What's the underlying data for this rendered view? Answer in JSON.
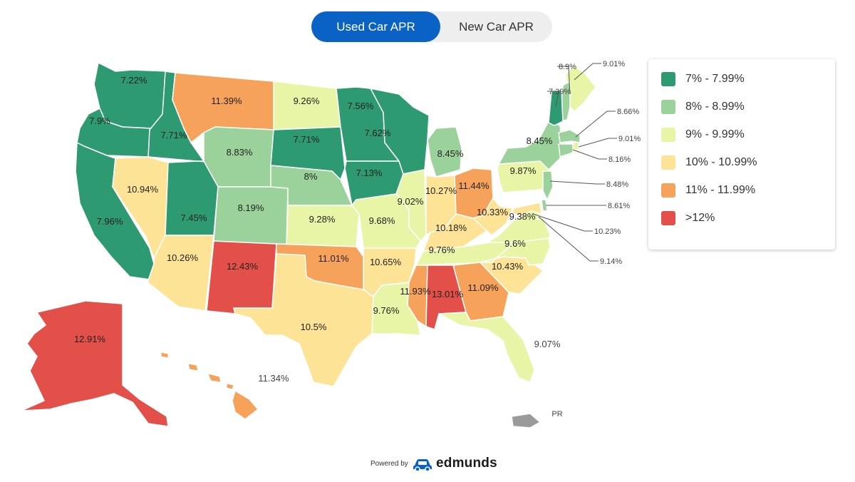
{
  "toggle": {
    "active": "Used Car APR",
    "inactive": "New Car APR"
  },
  "legend": [
    {
      "label": "7% - 7.99%",
      "color": "#2e9a72"
    },
    {
      "label": "8% - 8.99%",
      "color": "#9bd29b"
    },
    {
      "label": "9% - 9.99%",
      "color": "#e8f5a6"
    },
    {
      "label": "10% - 10.99%",
      "color": "#fde396"
    },
    {
      "label": "11% - 11.99%",
      "color": "#f7a25a"
    },
    {
      "label": ">12%",
      "color": "#e35049"
    }
  ],
  "states": [
    {
      "name": "Washington",
      "value": "7.22%"
    },
    {
      "name": "Oregon",
      "value": "7.9%"
    },
    {
      "name": "California",
      "value": "7.96%"
    },
    {
      "name": "Idaho",
      "value": "7.71%"
    },
    {
      "name": "Nevada",
      "value": "10.94%"
    },
    {
      "name": "Utah",
      "value": "7.45%"
    },
    {
      "name": "Arizona",
      "value": "10.26%"
    },
    {
      "name": "Montana",
      "value": "11.39%"
    },
    {
      "name": "Wyoming",
      "value": "8.83%"
    },
    {
      "name": "Colorado",
      "value": "8.19%"
    },
    {
      "name": "New Mexico",
      "value": "12.43%"
    },
    {
      "name": "North Dakota",
      "value": "9.26%"
    },
    {
      "name": "South Dakota",
      "value": "7.71%"
    },
    {
      "name": "Nebraska",
      "value": "8%"
    },
    {
      "name": "Kansas",
      "value": "9.28%"
    },
    {
      "name": "Oklahoma",
      "value": "11.01%"
    },
    {
      "name": "Texas",
      "value": "10.5%"
    },
    {
      "name": "Minnesota",
      "value": "7.56%"
    },
    {
      "name": "Iowa",
      "value": "7.13%"
    },
    {
      "name": "Missouri",
      "value": "9.68%"
    },
    {
      "name": "Arkansas",
      "value": "10.65%"
    },
    {
      "name": "Louisiana",
      "value": "9.76%"
    },
    {
      "name": "Wisconsin",
      "value": "7.62%"
    },
    {
      "name": "Illinois",
      "value": "9.02%"
    },
    {
      "name": "Michigan",
      "value": "8.45%"
    },
    {
      "name": "Indiana",
      "value": "10.27%"
    },
    {
      "name": "Ohio",
      "value": "11.44%"
    },
    {
      "name": "Kentucky",
      "value": "10.18%"
    },
    {
      "name": "Tennessee",
      "value": "9.76%"
    },
    {
      "name": "Mississippi",
      "value": "11.93%"
    },
    {
      "name": "Alabama",
      "value": "13.01%"
    },
    {
      "name": "Georgia",
      "value": "11.09%"
    },
    {
      "name": "Florida",
      "value": "9.07%"
    },
    {
      "name": "South Carolina",
      "value": "10.43%"
    },
    {
      "name": "North Carolina",
      "value": "9.6%"
    },
    {
      "name": "Virginia",
      "value": "9.38%"
    },
    {
      "name": "West Virginia",
      "value": "10.33%"
    },
    {
      "name": "Pennsylvania",
      "value": "9.87%"
    },
    {
      "name": "New York",
      "value": "8.45%"
    },
    {
      "name": "Maine",
      "value": "9.01%"
    },
    {
      "name": "New Hampshire",
      "value": "8.9%"
    },
    {
      "name": "Vermont",
      "value": "7.39%"
    },
    {
      "name": "Massachusetts",
      "value": "8.66%"
    },
    {
      "name": "Rhode Island",
      "value": "9.01%"
    },
    {
      "name": "Connecticut",
      "value": "8.16%"
    },
    {
      "name": "New Jersey",
      "value": "8.48%"
    },
    {
      "name": "Delaware",
      "value": "8.61%"
    },
    {
      "name": "Maryland",
      "value": "10.23%"
    },
    {
      "name": "District of Columbia",
      "value": "9.14%"
    },
    {
      "name": "Alaska",
      "value": "12.91%"
    },
    {
      "name": "Hawaii",
      "value": "11.34%"
    },
    {
      "name": "Puerto Rico",
      "value": "PR"
    }
  ],
  "footer": {
    "powered_by": "Powered by",
    "brand": "edmunds"
  }
}
